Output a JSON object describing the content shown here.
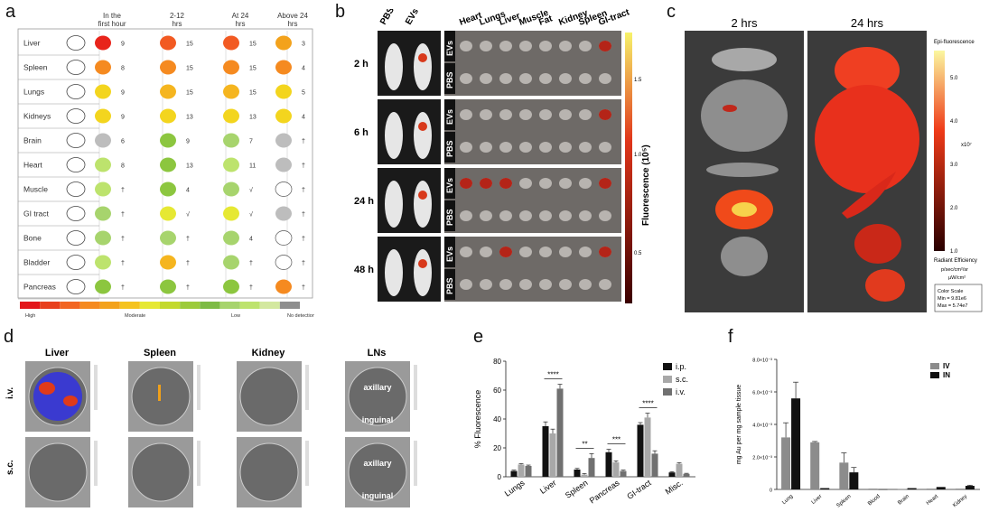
{
  "panel_labels": {
    "a": "a",
    "b": "b",
    "c": "c",
    "d": "d",
    "e": "e",
    "f": "f"
  },
  "panel_a": {
    "columns": [
      "In the first hour",
      "2-12 hrs",
      "At 24 hrs",
      "Above 24 hrs"
    ],
    "organs": [
      {
        "name": "Liver",
        "counts": [
          "9",
          "15",
          "15",
          "3"
        ],
        "colors": [
          "#e8241b",
          "#f25a22",
          "#f25a22",
          "#f3a21c"
        ]
      },
      {
        "name": "Spleen",
        "counts": [
          "8",
          "15",
          "15",
          "4"
        ],
        "colors": [
          "#f58a20",
          "#f58a20",
          "#f58a20",
          "#f58a20"
        ]
      },
      {
        "name": "Lungs",
        "counts": [
          "9",
          "15",
          "15",
          "5"
        ],
        "colors": [
          "#f3d51e",
          "#f5b51f",
          "#f5b51f",
          "#f3d51e"
        ]
      },
      {
        "name": "Kidneys",
        "counts": [
          "9",
          "13",
          "13",
          "4"
        ],
        "colors": [
          "#f3d51e",
          "#f3d51e",
          "#f3d51e",
          "#f3d51e"
        ]
      },
      {
        "name": "Brain",
        "counts": [
          "6",
          "9",
          "7",
          "†"
        ],
        "colors": [
          "#bdbdbd",
          "#8cc63f",
          "#a7d46d",
          "#bdbdbd"
        ]
      },
      {
        "name": "Heart",
        "counts": [
          "8",
          "13",
          "11",
          "†"
        ],
        "colors": [
          "#bde36d",
          "#8cc63f",
          "#bde36d",
          "#bdbdbd"
        ]
      },
      {
        "name": "Muscle",
        "counts": [
          "†",
          "4",
          "√",
          "†"
        ],
        "colors": [
          "#bde36d",
          "#8cc63f",
          "#a7d46d",
          "#ffffff"
        ]
      },
      {
        "name": "GI tract",
        "counts": [
          "†",
          "√",
          "√",
          "†"
        ],
        "colors": [
          "#a7d46d",
          "#e6e833",
          "#e6e833",
          "#bdbdbd"
        ]
      },
      {
        "name": "Bone",
        "counts": [
          "†",
          "†",
          "4",
          "†"
        ],
        "colors": [
          "#a7d46d",
          "#a7d46d",
          "#a7d46d",
          "#ffffff"
        ]
      },
      {
        "name": "Bladder",
        "counts": [
          "†",
          "†",
          "†",
          "†"
        ],
        "colors": [
          "#bde36d",
          "#f5b51f",
          "#a7d46d",
          "#ffffff"
        ]
      },
      {
        "name": "Pancreas",
        "counts": [
          "†",
          "†",
          "†",
          "†"
        ],
        "colors": [
          "#8cc63f",
          "#8cc63f",
          "#8cc63f",
          "#f58a20"
        ]
      }
    ],
    "legend": {
      "colors": [
        "#e3161b",
        "#e8401d",
        "#f26522",
        "#f58a20",
        "#f3a21c",
        "#f5c31e",
        "#e6e833",
        "#c3d92d",
        "#9ccb3b",
        "#7dbb45",
        "#a7d46d",
        "#bde36d",
        "#d3e89f",
        "#8e8e8e"
      ],
      "labels": [
        "High",
        "Moderate",
        "Low",
        "No detection"
      ]
    }
  },
  "panel_b": {
    "col_headers": [
      "PBS",
      "EVs"
    ],
    "organ_headers": [
      "Heart",
      "Lungs",
      "Liver",
      "Muscle",
      "Fat",
      "Kidney",
      "Spleen",
      "GI-tract"
    ],
    "timepoints": [
      "2 h",
      "6 h",
      "24 h",
      "48 h"
    ],
    "row_tags": [
      "EVs",
      "PBS"
    ],
    "colorbar_title": "Fluorescence (10⁵)",
    "colorbar_ticks": [
      "1.5",
      "1.0",
      "0.5"
    ]
  },
  "panel_c": {
    "headers": [
      "2 hrs",
      "24 hrs"
    ],
    "colorbar_title": "Epi-fluorescence",
    "colorbar_ticks": [
      "5.0",
      "4.0",
      "3.0",
      "2.0",
      "1.0"
    ],
    "scale_unit": "x10⁷",
    "bottom_label": "Radiant Efficiency",
    "bottom_unit_1": "p/sec/cm²/sr",
    "bottom_unit_2": "µW/cm²",
    "scale_box": [
      "Color Scale",
      "Min = 9.81e6",
      "Max = 5.74e7"
    ]
  },
  "panel_d": {
    "col_headers": [
      "Liver",
      "Spleen",
      "Kidney",
      "LNs"
    ],
    "row_headers": [
      "i.v.",
      "s.c."
    ],
    "ln_labels": [
      "axillary",
      "inguinal",
      "axillary",
      "inguinal"
    ]
  },
  "chart_data": [
    {
      "type": "bar",
      "panel": "e",
      "categories": [
        "Lungs",
        "Liver",
        "Spleen",
        "Pancreas",
        "GI-tract",
        "Misc."
      ],
      "series": [
        {
          "name": "i.p.",
          "color": "#111111",
          "values": [
            4,
            35,
            5,
            17,
            36,
            3
          ],
          "errors": [
            0.6,
            3,
            0.8,
            2,
            1.5,
            0.5
          ]
        },
        {
          "name": "s.c.",
          "color": "#a8a8a8",
          "values": [
            8.5,
            30,
            1.5,
            10,
            41,
            9
          ],
          "errors": [
            0.6,
            3,
            0.8,
            1,
            3,
            0.8
          ]
        },
        {
          "name": "i.v.",
          "color": "#707070",
          "values": [
            7.5,
            61,
            13,
            4,
            16,
            2
          ],
          "errors": [
            0.6,
            3,
            3,
            0.6,
            2,
            0.4
          ]
        }
      ],
      "xlabel": "",
      "ylabel": "% Fluorescence",
      "ylim": [
        0,
        80
      ],
      "yticks": [
        "0",
        "20",
        "40",
        "60",
        "80"
      ],
      "significance": [
        "****",
        "**",
        "***",
        "****"
      ],
      "legend_position": "top-right"
    },
    {
      "type": "bar",
      "panel": "f",
      "categories": [
        "Lung",
        "Liver",
        "Spleen",
        "Blood",
        "Brain",
        "Heart",
        "Kidney"
      ],
      "series": [
        {
          "name": "IV",
          "color": "#8c8c8c",
          "values": [
            3.2,
            2.9,
            1.65,
            0.05,
            0.02,
            0.05,
            0.05
          ],
          "errors": [
            0.9,
            0.05,
            0.6,
            0,
            0,
            0,
            0
          ]
        },
        {
          "name": "IN",
          "color": "#111111",
          "values": [
            5.6,
            0.08,
            1.05,
            0.01,
            0.08,
            0.15,
            0.22
          ],
          "errors": [
            1.0,
            0,
            0.3,
            0,
            0,
            0,
            0.04
          ]
        }
      ],
      "xlabel": "",
      "ylabel": "mg Au per mg sample tissue",
      "ylim": [
        0,
        8
      ],
      "yticks": [
        "0",
        "2.0×10⁻³",
        "4.0×10⁻³",
        "6.0×10⁻³",
        "8.0×10⁻³"
      ],
      "legend_position": "top-left"
    }
  ]
}
